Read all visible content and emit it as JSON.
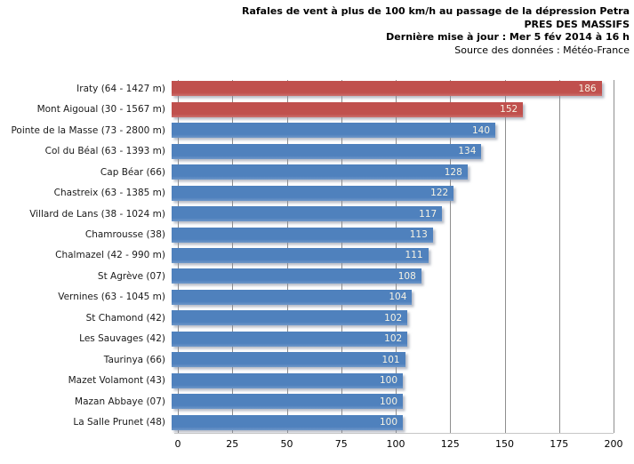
{
  "title": {
    "line1": "Rafales de vent à plus de 100 km/h au passage de la dépression Petra",
    "line2": "PRES DES MASSIFS",
    "line3": "Dernière mise à jour : Mer 5 fév 2014 à 16 h",
    "line4": "Source des données : Météo-France"
  },
  "colors": {
    "red": "#c0504d",
    "blue": "#4f81bd",
    "gridline": "#8e8e8e",
    "axis_line": "#c6c6c6",
    "value_label_text": "#f7f3e3"
  },
  "chart_data": {
    "type": "bar",
    "orientation": "horizontal",
    "title": "Rafales de vent à plus de 100 km/h au passage de la dépression Petra",
    "subtitle": "PRES DES MASSIFS",
    "updated_text": "Dernière mise à jour : Mer 5 fév 2014 à 16 h",
    "source_text": "Source des données : Météo-France",
    "xlabel": "",
    "ylabel": "",
    "xlim": [
      0,
      200
    ],
    "xticks": [
      0,
      25,
      50,
      75,
      100,
      125,
      150,
      175,
      200
    ],
    "grid": true,
    "legend": "none",
    "value_labels_position": "inside-end",
    "categories": [
      "Iraty (64 - 1427 m)",
      "Mont Aigoual (30 - 1567 m)",
      "Pointe de la Masse (73 - 2800 m)",
      "Col du Béal (63 - 1393 m)",
      "Cap Béar (66)",
      "Chastreix (63 - 1385 m)",
      "Villard de Lans (38 - 1024 m)",
      "Chamrousse (38)",
      "Chalmazel (42 - 990 m)",
      "St Agrève (07)",
      "Vernines (63 - 1045 m)",
      "St Chamond (42)",
      "Les Sauvages (42)",
      "Taurinya (66)",
      "Mazet Volamont (43)",
      "Mazan Abbaye (07)",
      "La Salle Prunet (48)"
    ],
    "values": [
      186,
      152,
      140,
      134,
      128,
      122,
      117,
      113,
      111,
      108,
      104,
      102,
      102,
      101,
      100,
      100,
      100
    ],
    "bar_colors": [
      "#c0504d",
      "#c0504d",
      "#4f81bd",
      "#4f81bd",
      "#4f81bd",
      "#4f81bd",
      "#4f81bd",
      "#4f81bd",
      "#4f81bd",
      "#4f81bd",
      "#4f81bd",
      "#4f81bd",
      "#4f81bd",
      "#4f81bd",
      "#4f81bd",
      "#4f81bd",
      "#4f81bd"
    ]
  }
}
